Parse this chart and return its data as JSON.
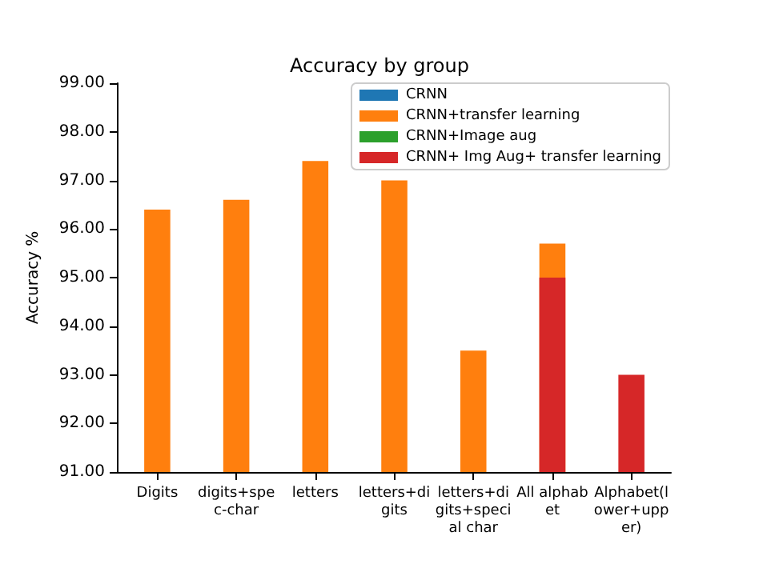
{
  "chart_data": {
    "type": "bar",
    "title": "Accuracy by group",
    "ylabel": "Accuracy %",
    "categories": [
      "Digits",
      "digits+spec-char",
      "letters",
      "letters+digits",
      "letters+digits+special char",
      "All alphabet",
      "Alphabet(lower+upper)"
    ],
    "series": [
      {
        "name": "CRNN",
        "color": "#1f77b4",
        "values": [
          null,
          null,
          null,
          null,
          null,
          null,
          null
        ]
      },
      {
        "name": "CRNN+transfer learning",
        "color": "#ff7f0e",
        "values": [
          96.4,
          96.6,
          97.4,
          97.0,
          93.5,
          95.7,
          null
        ]
      },
      {
        "name": "CRNN+Image aug",
        "color": "#2ca02c",
        "values": [
          null,
          null,
          null,
          null,
          null,
          null,
          null
        ]
      },
      {
        "name": "CRNN+ Img Aug+ transfer learning",
        "color": "#d62728",
        "values": [
          null,
          null,
          null,
          null,
          null,
          95.0,
          93.0
        ]
      }
    ],
    "ylim": [
      91,
      99
    ],
    "yticks": [
      {
        "value": 91,
        "label": "91.00"
      },
      {
        "value": 92,
        "label": "92.00"
      },
      {
        "value": 93,
        "label": "93.00"
      },
      {
        "value": 94,
        "label": "94.00"
      },
      {
        "value": 95,
        "label": "95.00"
      },
      {
        "value": 96,
        "label": "96.00"
      },
      {
        "value": 97,
        "label": "97.00"
      },
      {
        "value": 98,
        "label": "98.00"
      },
      {
        "value": 99,
        "label": "99.00"
      }
    ],
    "grid": false,
    "legend": "top right"
  }
}
